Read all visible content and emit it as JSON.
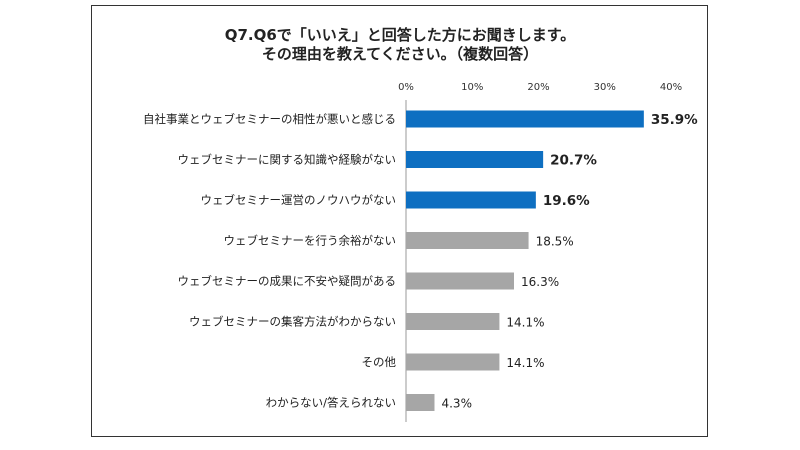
{
  "chart_data": {
    "type": "bar",
    "orientation": "horizontal",
    "title_lines": [
      "Q7.Q6で「いいえ」と回答した方にお聞きします。",
      "その理由を教えてください。（複数回答）"
    ],
    "xlim": [
      0,
      40
    ],
    "x_ticks": [
      "0%",
      "10%",
      "20%",
      "30%",
      "40%"
    ],
    "grid": false,
    "legend": "none",
    "categories": [
      "自社事業とウェブセミナーの相性が悪いと感じる",
      "ウェブセミナーに関する知識や経験がない",
      "ウェブセミナー運営のノウハウがない",
      "ウェブセミナーを行う余裕がない",
      "ウェブセミナーの成果に不安や疑問がある",
      "ウェブセミナーの集客方法がわからない",
      "その他",
      "わからない/答えられない"
    ],
    "values": [
      35.9,
      20.7,
      19.6,
      18.5,
      16.3,
      14.1,
      14.1,
      4.3
    ],
    "value_labels": [
      "35.9%",
      "20.7%",
      "19.6%",
      "18.5%",
      "16.3%",
      "14.1%",
      "14.1%",
      "4.3%"
    ],
    "highlight_count": 3,
    "colors": {
      "highlight": "#0e6fc1",
      "normal": "#a6a6a6",
      "axis": "#999999"
    }
  }
}
